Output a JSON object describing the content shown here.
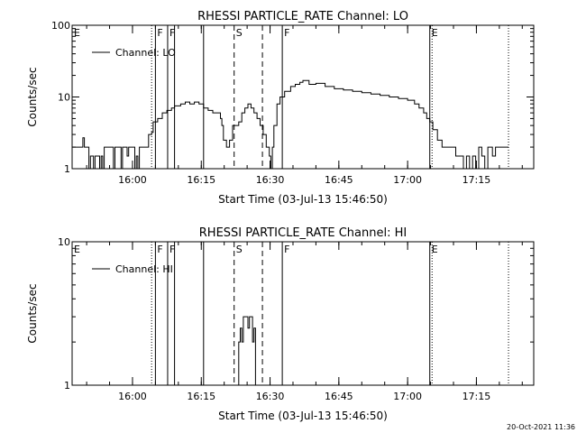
{
  "chart_data": [
    {
      "type": "line",
      "title": "RHESSI PARTICLE_RATE Channel: LO",
      "xlabel": "Start Time (03-Jul-13 15:46:50)",
      "ylabel": "Counts/sec",
      "yscale": "log",
      "ylim": [
        1,
        100
      ],
      "xlim": [
        "15:46:50",
        "17:27:30"
      ],
      "y_tick_labels": [
        "1",
        "10",
        "100"
      ],
      "x_tick_labels": [
        "16:00",
        "16:15",
        "16:30",
        "16:45",
        "17:00",
        "17:15"
      ],
      "legend": {
        "entries": [
          "Channel: LO"
        ],
        "placement": "top-left"
      },
      "markers": [
        {
          "label": "E",
          "time": "15:46:50",
          "style": "none"
        },
        {
          "label": "F",
          "time": "16:05:00",
          "style": "solid"
        },
        {
          "label": "F",
          "time": "16:07:40",
          "style": "solid"
        },
        {
          "label": "S",
          "time": "16:22:10",
          "style": "dashed"
        },
        {
          "label": "F",
          "time": "16:32:40",
          "style": "solid"
        },
        {
          "label": "E",
          "time": "17:04:50",
          "style": "solid"
        }
      ],
      "extra_lines": [
        {
          "time": "16:04:10",
          "style": "dotted"
        },
        {
          "time": "16:09:10",
          "style": "solid"
        },
        {
          "time": "16:15:30",
          "style": "solid"
        },
        {
          "time": "16:28:20",
          "style": "dashed"
        },
        {
          "time": "17:05:20",
          "style": "dotted"
        },
        {
          "time": "17:22:00",
          "style": "dotted"
        }
      ],
      "series": [
        {
          "name": "Channel: LO",
          "points": [
            [
              "15:46:50",
              2
            ],
            [
              "15:48:50",
              2
            ],
            [
              "15:49:10",
              2.7
            ],
            [
              "15:49:30",
              2
            ],
            [
              "15:50:10",
              2
            ],
            [
              "15:50:30",
              1
            ],
            [
              "15:50:50",
              1.5
            ],
            [
              "15:51:10",
              1.5
            ],
            [
              "15:51:30",
              1
            ],
            [
              "15:51:50",
              1.5
            ],
            [
              "15:52:30",
              1.5
            ],
            [
              "15:52:50",
              1
            ],
            [
              "15:53:10",
              1.5
            ],
            [
              "15:53:30",
              1
            ],
            [
              "15:53:50",
              2
            ],
            [
              "15:55:30",
              2
            ],
            [
              "15:55:50",
              1
            ],
            [
              "15:56:10",
              2
            ],
            [
              "15:57:10",
              2
            ],
            [
              "15:57:30",
              1
            ],
            [
              "15:57:50",
              2
            ],
            [
              "15:58:30",
              2
            ],
            [
              "15:58:50",
              1.5
            ],
            [
              "15:59:10",
              2
            ],
            [
              "16:00:10",
              2
            ],
            [
              "16:00:30",
              1
            ],
            [
              "16:00:50",
              1.5
            ],
            [
              "16:01:10",
              1
            ],
            [
              "16:01:30",
              2
            ],
            [
              "16:02:30",
              2
            ],
            [
              "16:03:30",
              3
            ],
            [
              "16:04:10",
              3.2
            ],
            [
              "16:04:30",
              4.5
            ],
            [
              "16:05:30",
              5
            ],
            [
              "16:06:30",
              6
            ],
            [
              "16:07:30",
              6.5
            ],
            [
              "16:08:30",
              7
            ],
            [
              "16:09:10",
              7.5
            ],
            [
              "16:10:30",
              8
            ],
            [
              "16:11:30",
              8.5
            ],
            [
              "16:12:30",
              8
            ],
            [
              "16:13:30",
              8.5
            ],
            [
              "16:14:30",
              8
            ],
            [
              "16:15:30",
              7
            ],
            [
              "16:16:30",
              6.5
            ],
            [
              "16:17:30",
              6
            ],
            [
              "16:18:30",
              6
            ],
            [
              "16:19:10",
              5
            ],
            [
              "16:19:30",
              4
            ],
            [
              "16:19:50",
              2.5
            ],
            [
              "16:20:30",
              2
            ],
            [
              "16:21:10",
              2.5
            ],
            [
              "16:21:50",
              4
            ],
            [
              "16:22:30",
              4
            ],
            [
              "16:23:10",
              4.5
            ],
            [
              "16:23:50",
              6
            ],
            [
              "16:24:30",
              7
            ],
            [
              "16:25:10",
              8
            ],
            [
              "16:25:50",
              7
            ],
            [
              "16:26:30",
              6
            ],
            [
              "16:27:10",
              5
            ],
            [
              "16:27:50",
              4
            ],
            [
              "16:28:30",
              3
            ],
            [
              "16:29:10",
              2
            ],
            [
              "16:29:50",
              1.5
            ],
            [
              "16:30:10",
              1
            ],
            [
              "16:30:30",
              2
            ],
            [
              "16:30:50",
              4
            ],
            [
              "16:31:30",
              8
            ],
            [
              "16:32:10",
              10
            ],
            [
              "16:33:10",
              12
            ],
            [
              "16:34:30",
              14
            ],
            [
              "16:35:30",
              15
            ],
            [
              "16:36:30",
              16
            ],
            [
              "16:37:10",
              17
            ],
            [
              "16:38:30",
              15
            ],
            [
              "16:40:00",
              15.5
            ],
            [
              "16:42:00",
              14
            ],
            [
              "16:44:00",
              13
            ],
            [
              "16:46:00",
              12.5
            ],
            [
              "16:48:00",
              12
            ],
            [
              "16:50:00",
              11.5
            ],
            [
              "16:52:00",
              11
            ],
            [
              "16:54:00",
              10.5
            ],
            [
              "16:56:00",
              10
            ],
            [
              "16:58:00",
              9.5
            ],
            [
              "17:00:00",
              9
            ],
            [
              "17:01:30",
              8
            ],
            [
              "17:02:30",
              7
            ],
            [
              "17:03:30",
              6
            ],
            [
              "17:04:10",
              5
            ],
            [
              "17:04:50",
              4.5
            ],
            [
              "17:05:30",
              3.5
            ],
            [
              "17:06:30",
              2.5
            ],
            [
              "17:07:30",
              2
            ],
            [
              "17:10:00",
              2
            ],
            [
              "17:10:30",
              1.5
            ],
            [
              "17:11:30",
              1.5
            ],
            [
              "17:12:10",
              1
            ],
            [
              "17:12:50",
              1.5
            ],
            [
              "17:13:30",
              1
            ],
            [
              "17:14:10",
              1.5
            ],
            [
              "17:14:50",
              1
            ],
            [
              "17:15:30",
              2
            ],
            [
              "17:16:10",
              1.5
            ],
            [
              "17:16:50",
              1
            ],
            [
              "17:17:30",
              2
            ],
            [
              "17:18:30",
              1.5
            ],
            [
              "17:19:10",
              2
            ],
            [
              "17:22:00",
              2
            ]
          ]
        }
      ]
    },
    {
      "type": "line",
      "title": "RHESSI PARTICLE_RATE Channel: HI",
      "xlabel": "Start Time (03-Jul-13 15:46:50)",
      "ylabel": "Counts/sec",
      "yscale": "log",
      "ylim": [
        1,
        10
      ],
      "xlim": [
        "15:46:50",
        "17:27:30"
      ],
      "y_tick_labels": [
        "1",
        "10"
      ],
      "x_tick_labels": [
        "16:00",
        "16:15",
        "16:30",
        "16:45",
        "17:00",
        "17:15"
      ],
      "legend": {
        "entries": [
          "Channel: HI"
        ],
        "placement": "top-left"
      },
      "markers": [
        {
          "label": "E",
          "time": "15:46:50",
          "style": "none"
        },
        {
          "label": "F",
          "time": "16:05:00",
          "style": "solid"
        },
        {
          "label": "F",
          "time": "16:07:40",
          "style": "solid"
        },
        {
          "label": "S",
          "time": "16:22:10",
          "style": "dashed"
        },
        {
          "label": "F",
          "time": "16:32:40",
          "style": "solid"
        },
        {
          "label": "E",
          "time": "17:04:50",
          "style": "solid"
        }
      ],
      "extra_lines": [
        {
          "time": "16:04:10",
          "style": "dotted"
        },
        {
          "time": "16:09:10",
          "style": "solid"
        },
        {
          "time": "16:15:30",
          "style": "solid"
        },
        {
          "time": "16:28:20",
          "style": "dashed"
        },
        {
          "time": "17:05:20",
          "style": "dotted"
        },
        {
          "time": "17:22:00",
          "style": "dotted"
        }
      ],
      "series": [
        {
          "name": "Channel: HI",
          "points": [
            [
              "16:22:50",
              1
            ],
            [
              "16:23:10",
              2
            ],
            [
              "16:23:30",
              2.5
            ],
            [
              "16:23:50",
              2
            ],
            [
              "16:24:10",
              3
            ],
            [
              "16:24:50",
              3
            ],
            [
              "16:25:10",
              2.5
            ],
            [
              "16:25:30",
              3
            ],
            [
              "16:25:50",
              3
            ],
            [
              "16:26:10",
              2
            ],
            [
              "16:26:30",
              2.5
            ],
            [
              "16:26:50",
              1
            ]
          ]
        }
      ]
    }
  ],
  "footer": {
    "timestamp": "20-Oct-2021 11:36"
  }
}
